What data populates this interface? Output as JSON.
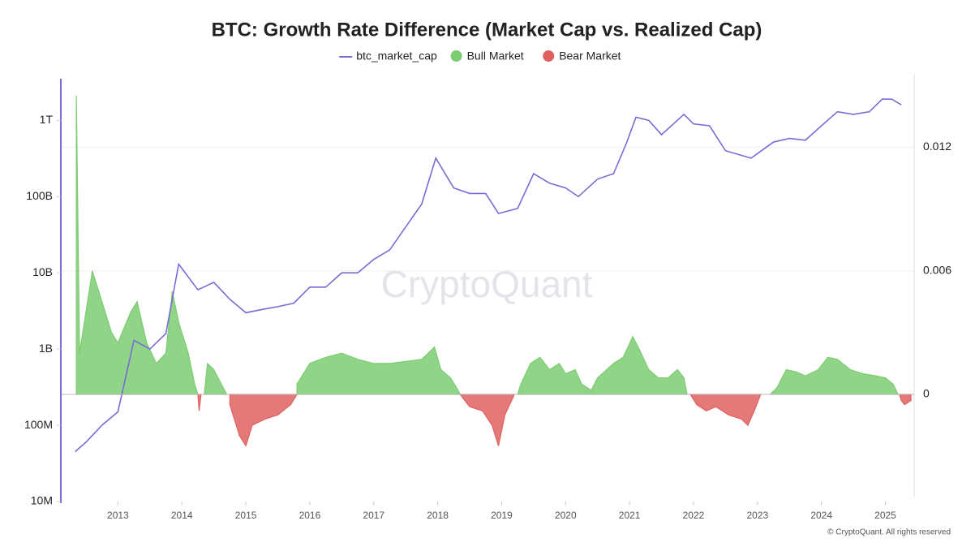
{
  "chart_data": {
    "type": "line",
    "title": "BTC: Growth Rate Difference (Market Cap vs. Realized Cap)",
    "watermark": "CryptoQuant",
    "source": "© CryptoQuant. All rights reserved",
    "ylog": true,
    "ylim": [
      10000000,
      3700000000000
    ],
    "yticks": [
      {
        "value": 10000000,
        "label": "10M"
      },
      {
        "value": 100000000,
        "label": "100M"
      },
      {
        "value": 1000000000,
        "label": "1B"
      },
      {
        "value": 10000000000,
        "label": "10B"
      },
      {
        "value": 100000000000,
        "label": "100B"
      },
      {
        "value": 1000000000000,
        "label": "1T"
      }
    ],
    "y2lim": [
      -0.0052,
      0.0154
    ],
    "y2ticks": [
      0,
      0.006,
      0.012
    ],
    "xlim": [
      2012.12,
      2025.45
    ],
    "xticks": [
      2013,
      2014,
      2015,
      2016,
      2017,
      2018,
      2019,
      2020,
      2021,
      2022,
      2023,
      2024,
      2025
    ],
    "grid": true,
    "series": [
      {
        "name": "btc_market_cap",
        "type": "line",
        "color": "#7b6ad6",
        "x": [
          2012.33,
          2012.5,
          2012.75,
          2013.0,
          2013.25,
          2013.5,
          2013.75,
          2013.95,
          2014.25,
          2014.5,
          2014.75,
          2015.0,
          2015.25,
          2015.5,
          2015.75,
          2016.0,
          2016.25,
          2016.5,
          2016.75,
          2017.0,
          2017.25,
          2017.5,
          2017.75,
          2017.97,
          2018.25,
          2018.5,
          2018.75,
          2018.95,
          2019.25,
          2019.5,
          2019.75,
          2020.0,
          2020.2,
          2020.5,
          2020.75,
          2020.95,
          2021.1,
          2021.3,
          2021.5,
          2021.85,
          2022.0,
          2022.25,
          2022.5,
          2022.9,
          2023.25,
          2023.5,
          2023.75,
          2024.0,
          2024.25,
          2024.5,
          2024.75,
          2024.95,
          2025.1,
          2025.25
        ],
        "values": [
          45000000,
          60000000,
          100000000,
          150000000,
          1300000000,
          1000000000,
          1600000000,
          13000000000,
          6000000000,
          7500000000,
          4500000000,
          3000000000,
          3300000000,
          3600000000,
          4000000000,
          6500000000,
          6500000000,
          10000000000,
          10000000000,
          15000000000,
          20000000000,
          40000000000,
          80000000000,
          320000000000,
          130000000000,
          110000000000,
          110000000000,
          60000000000,
          70000000000,
          200000000000,
          150000000000,
          130000000000,
          100000000000,
          170000000000,
          200000000000,
          500000000000,
          1100000000000,
          1000000000000,
          650000000000,
          1200000000000,
          900000000000,
          850000000000,
          400000000000,
          320000000000,
          520000000000,
          580000000000,
          550000000000,
          850000000000,
          1300000000000,
          1200000000000,
          1300000000000,
          1900000000000,
          1900000000000,
          1600000000000
        ]
      },
      {
        "name": "Bull Market",
        "type": "area",
        "axis": "y2",
        "color": "#7ccc72",
        "x": [
          2012.35,
          2012.4,
          2012.5,
          2012.6,
          2012.75,
          2012.9,
          2013.0,
          2013.2,
          2013.3,
          2013.45,
          2013.6,
          2013.75,
          2013.85,
          2013.95,
          2014.1,
          2014.2,
          2014.25,
          null,
          2014.35,
          2014.4,
          2014.5,
          2014.7,
          null,
          2015.8,
          2016.0,
          2016.25,
          2016.5,
          2016.75,
          2017.0,
          2017.25,
          2017.5,
          2017.75,
          2017.95,
          2018.05,
          2018.2,
          2018.3,
          2018.35,
          null,
          2019.25,
          2019.3,
          2019.45,
          2019.6,
          2019.75,
          2019.9,
          2020.0,
          2020.15,
          2020.25,
          2020.4,
          2020.5,
          2020.75,
          2020.9,
          2021.05,
          2021.15,
          2021.3,
          2021.45,
          2021.6,
          2021.75,
          2021.85,
          2021.9,
          null,
          2023.2,
          2023.3,
          2023.45,
          2023.6,
          2023.75,
          2023.95,
          2024.1,
          2024.25,
          2024.45,
          2024.65,
          2024.85,
          2025.0,
          2025.12,
          2025.2
        ],
        "values": [
          0.0145,
          0.002,
          0.004,
          0.006,
          0.0045,
          0.003,
          0.0025,
          0.004,
          0.0045,
          0.0025,
          0.0015,
          0.002,
          0.005,
          0.0035,
          0.002,
          0.0005,
          0,
          null,
          0,
          0.0015,
          0.0012,
          0,
          null,
          0.0005,
          0.0015,
          0.0018,
          0.002,
          0.0017,
          0.0015,
          0.0015,
          0.0016,
          0.0017,
          0.0023,
          0.0012,
          0.0008,
          0.0003,
          0,
          null,
          0,
          0.0005,
          0.0015,
          0.0018,
          0.0012,
          0.0015,
          0.001,
          0.0012,
          0.0005,
          0.0002,
          0.0008,
          0.0015,
          0.0018,
          0.0028,
          0.0022,
          0.0012,
          0.0008,
          0.0008,
          0.0012,
          0.0008,
          0,
          null,
          0,
          0.0003,
          0.0012,
          0.0011,
          0.0009,
          0.0012,
          0.0018,
          0.0017,
          0.0012,
          0.001,
          0.0009,
          0.0008,
          0.0005,
          0
        ]
      },
      {
        "name": "Bear Market",
        "type": "area",
        "axis": "y2",
        "color": "#e06060",
        "x": [
          2014.25,
          2014.27,
          2014.3,
          null,
          2014.75,
          2014.9,
          2015.0,
          2015.1,
          2015.3,
          2015.5,
          2015.7,
          2015.8,
          null,
          2018.35,
          2018.5,
          2018.7,
          2018.85,
          2018.95,
          2019.05,
          2019.2,
          null,
          2021.95,
          2022.05,
          2022.2,
          2022.35,
          2022.55,
          2022.75,
          2022.85,
          2022.95,
          2023.05,
          null,
          2025.22,
          2025.25,
          2025.3,
          2025.4
        ],
        "values": [
          0,
          -0.0008,
          0,
          null,
          -0.0005,
          -0.002,
          -0.0025,
          -0.0015,
          -0.0012,
          -0.001,
          -0.0005,
          0,
          null,
          0,
          -0.0006,
          -0.0008,
          -0.0015,
          -0.0025,
          -0.001,
          0,
          null,
          0,
          -0.0005,
          -0.0008,
          -0.0006,
          -0.001,
          -0.0012,
          -0.0015,
          -0.0008,
          0,
          null,
          0,
          -0.0003,
          -0.0005,
          -0.0003
        ]
      }
    ]
  }
}
